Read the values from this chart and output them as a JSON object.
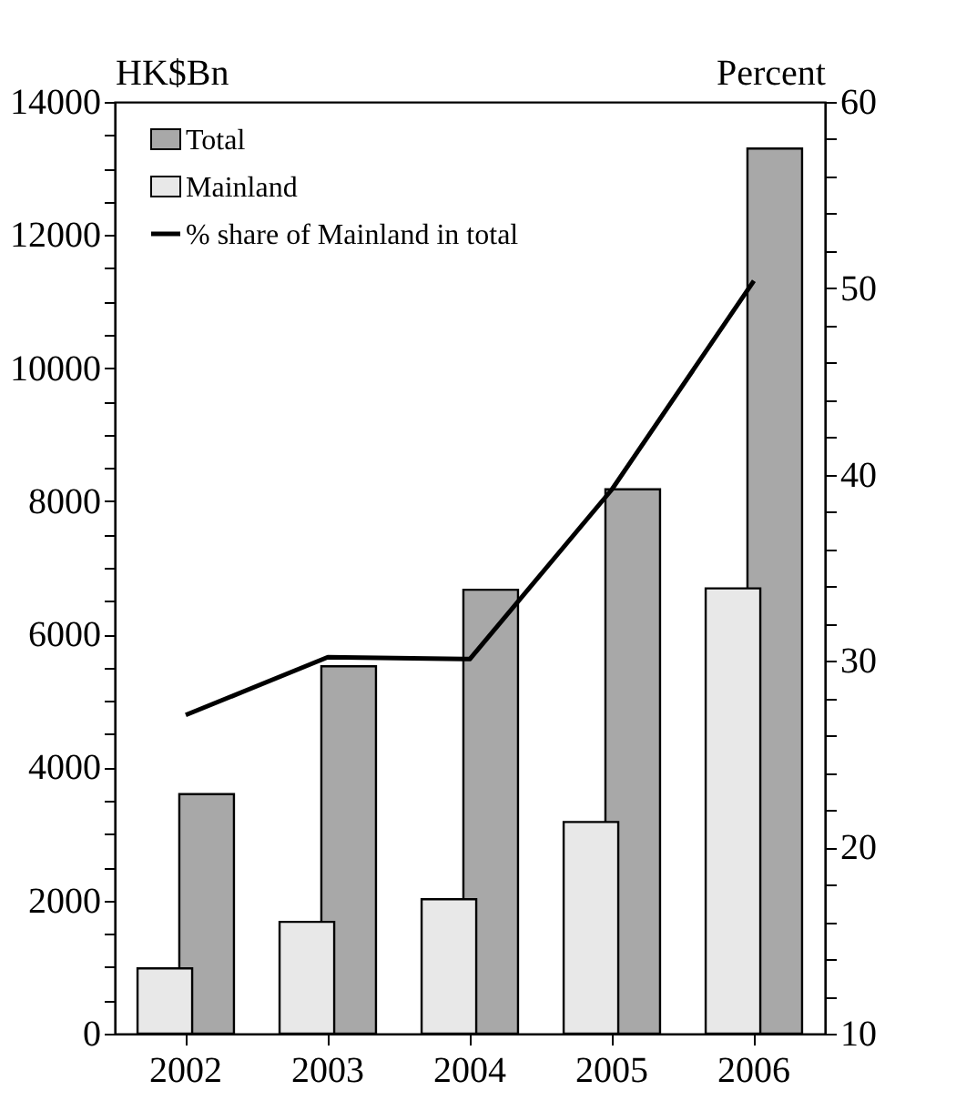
{
  "chart_data": {
    "type": "bar",
    "ylabel": "HK$Bn",
    "y2label": "Percent",
    "categories": [
      "2002",
      "2003",
      "2004",
      "2005",
      "2006"
    ],
    "series": [
      {
        "name": "Total",
        "type": "bar",
        "color": "#a8a8a8",
        "values": [
          3600,
          5520,
          6670,
          8180,
          13300
        ]
      },
      {
        "name": "Mainland",
        "type": "bar",
        "color": "#e8e8e8",
        "values": [
          980,
          1680,
          2020,
          3180,
          6690
        ]
      },
      {
        "name": "% share of Mainland in total",
        "type": "line",
        "axis": "y2",
        "color": "#000000",
        "values": [
          27.1,
          30.2,
          30.1,
          39.2,
          50.4
        ]
      }
    ],
    "ylim": [
      0,
      14000
    ],
    "yticks": [
      0,
      {
        "value": 500,
        "label": null
      },
      {
        "value": 1000,
        "label": null
      },
      {
        "value": 1500,
        "label": null
      },
      2000,
      {
        "value": 2500,
        "label": null
      },
      {
        "value": 3000,
        "label": null
      },
      {
        "value": 3500,
        "label": null
      },
      4000,
      {
        "value": 4500,
        "label": null
      },
      {
        "value": 5000,
        "label": null
      },
      {
        "value": 5500,
        "label": null
      },
      6000,
      {
        "value": 6500,
        "label": null
      },
      {
        "value": 7000,
        "label": null
      },
      {
        "value": 7500,
        "label": null
      },
      8000,
      {
        "value": 8500,
        "label": null
      },
      {
        "value": 9000,
        "label": null
      },
      {
        "value": 9500,
        "label": null
      },
      10000,
      {
        "value": 10500,
        "label": null
      },
      {
        "value": 11000,
        "label": null
      },
      {
        "value": 11500,
        "label": null
      },
      12000,
      {
        "value": 12500,
        "label": null
      },
      {
        "value": 13000,
        "label": null
      },
      {
        "value": 13500,
        "label": null
      },
      14000
    ],
    "y2lim": [
      10,
      60
    ],
    "y2ticks": [
      10,
      {
        "value": 12,
        "label": null
      },
      {
        "value": 14,
        "label": null
      },
      {
        "value": 16,
        "label": null
      },
      {
        "value": 18,
        "label": null
      },
      20,
      {
        "value": 22,
        "label": null
      },
      {
        "value": 24,
        "label": null
      },
      {
        "value": 26,
        "label": null
      },
      {
        "value": 28,
        "label": null
      },
      30,
      {
        "value": 32,
        "label": null
      },
      {
        "value": 34,
        "label": null
      },
      {
        "value": 36,
        "label": null
      },
      {
        "value": 38,
        "label": null
      },
      40,
      {
        "value": 42,
        "label": null
      },
      {
        "value": 44,
        "label": null
      },
      {
        "value": 46,
        "label": null
      },
      {
        "value": 48,
        "label": null
      },
      50,
      {
        "value": 52,
        "label": null
      },
      {
        "value": 54,
        "label": null
      },
      {
        "value": 56,
        "label": null
      },
      {
        "value": 58,
        "label": null
      },
      60
    ],
    "legend": "top left",
    "grid": false,
    "line_style": "solid",
    "marker": "none"
  }
}
